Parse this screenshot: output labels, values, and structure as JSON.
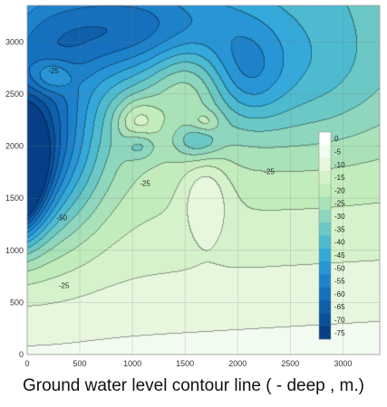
{
  "chart_data": {
    "type": "heatmap",
    "subtype": "filled-contour",
    "title": "Ground water level contour line ( - deep , m.)",
    "xlabel": "",
    "ylabel": "",
    "xlim": [
      0,
      3350
    ],
    "ylim": [
      0,
      3350
    ],
    "x_ticks": [
      0,
      500,
      1000,
      1500,
      2000,
      2500,
      3000
    ],
    "y_ticks": [
      0,
      500,
      1000,
      1500,
      2000,
      2500,
      3000
    ],
    "grid": true,
    "colorbar": {
      "position": "right",
      "levels": [
        0,
        -5,
        -10,
        -15,
        -20,
        -25,
        -30,
        -35,
        -40,
        -45,
        -50,
        -55,
        -60,
        -65,
        -70,
        -75
      ],
      "colors": [
        "#ffffff",
        "#f2fbef",
        "#e6f7de",
        "#d6f2cc",
        "#c3ecbc",
        "#a9e1b8",
        "#8ed6bd",
        "#6cc8c4",
        "#4dbad0",
        "#34a9da",
        "#2795d6",
        "#1e82cb",
        "#1670be",
        "#0f5fab",
        "#0a4f99",
        "#063f85"
      ]
    },
    "contour_labels": [
      {
        "text": "-25",
        "x": 250,
        "y": 2700
      },
      {
        "text": "-25",
        "x": 1120,
        "y": 1620
      },
      {
        "text": "-25",
        "x": 2300,
        "y": 1730
      },
      {
        "text": "-50",
        "x": 330,
        "y": 1290
      },
      {
        "text": "-25",
        "x": 350,
        "y": 640
      }
    ],
    "field": {
      "base": -4,
      "x_slope": 0.0005,
      "y_slope": -0.0085,
      "terms": [
        {
          "a": -78,
          "x": -150,
          "y": 1720,
          "sx": 280,
          "sy": 560
        },
        {
          "a": -40,
          "x": 120,
          "y": 2050,
          "sx": 560,
          "sy": 900
        },
        {
          "a": -28,
          "x": 950,
          "y": 3100,
          "sx": 1100,
          "sy": 500
        },
        {
          "a": -12,
          "x": 2600,
          "y": 2650,
          "sx": 900,
          "sy": 700
        },
        {
          "a": -12,
          "x": 2100,
          "y": 2650,
          "sx": 350,
          "sy": 450
        },
        {
          "a": -14,
          "x": 1620,
          "y": 2050,
          "sx": 220,
          "sy": 180
        },
        {
          "a": -10,
          "x": 1070,
          "y": 2000,
          "sx": 150,
          "sy": 130
        },
        {
          "a": 14,
          "x": 230,
          "y": 2670,
          "sx": 200,
          "sy": 160
        },
        {
          "a": 12,
          "x": 1050,
          "y": 2250,
          "sx": 200,
          "sy": 200
        },
        {
          "a": 11,
          "x": 1700,
          "y": 1520,
          "sx": 220,
          "sy": 380
        },
        {
          "a": 9,
          "x": 1700,
          "y": 2220,
          "sx": 140,
          "sy": 110
        },
        {
          "a": 12,
          "x": 1500,
          "y": 2650,
          "sx": 360,
          "sy": 420
        }
      ]
    }
  }
}
